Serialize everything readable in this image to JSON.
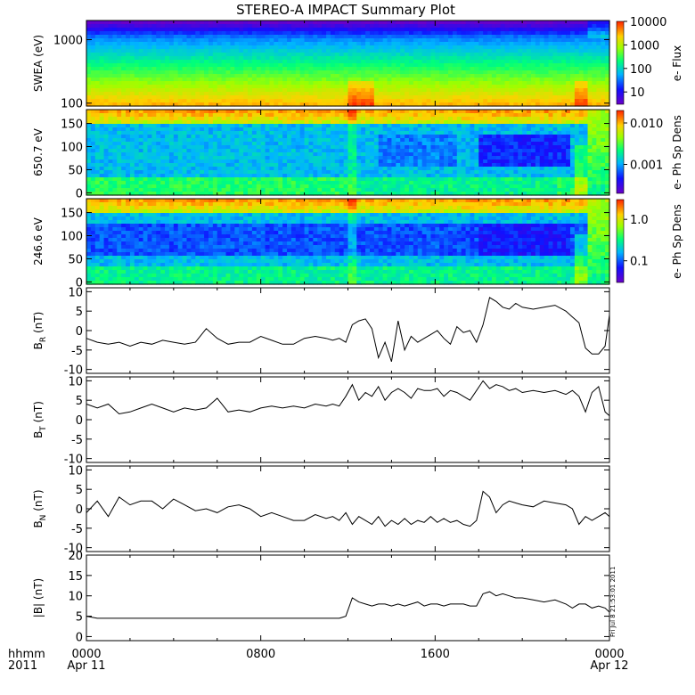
{
  "title": "STEREO-A IMPACT Summary Plot",
  "time_axis": {
    "labels": [
      "hhmm",
      "2011"
    ],
    "ticks": [
      {
        "hours": 0,
        "label": "0000",
        "date": "Apr 11"
      },
      {
        "hours": 8,
        "label": "0800",
        "date": ""
      },
      {
        "hours": 16,
        "label": "1600",
        "date": ""
      },
      {
        "hours": 24,
        "label": "0000",
        "date": "Apr 12"
      }
    ],
    "range_hours": [
      0,
      24
    ]
  },
  "stamp": "Fri Jul  8 21:53:01 2011",
  "chart_data": [
    {
      "type": "heatmap",
      "id": "swea",
      "ylabel": "SWEA (eV)",
      "yscale": "log",
      "ylim": [
        90,
        2000
      ],
      "yticks": [
        "100",
        "1000"
      ],
      "colorbar": {
        "label": "e- Flux",
        "scale": "log",
        "range": [
          3,
          10000
        ],
        "ticks": [
          "10",
          "100",
          "1000",
          "10000"
        ]
      },
      "events": [
        {
          "start_hours": 11.9,
          "end_hours": 13.2,
          "note": "enhanced flux"
        },
        {
          "start_hours": 22.4,
          "end_hours": 23.0,
          "note": "enhanced flux"
        }
      ]
    },
    {
      "type": "heatmap",
      "id": "pad650",
      "ylabel": "650.7 eV",
      "yticks": [
        "0",
        "50",
        "100",
        "150"
      ],
      "ylim": [
        -5,
        180
      ],
      "colorbar": {
        "label": "e- Ph Sp Dens",
        "scale": "log",
        "range": [
          0.0002,
          0.02
        ],
        "ticks": [
          "0.001",
          "0.010"
        ]
      }
    },
    {
      "type": "heatmap",
      "id": "pad246",
      "ylabel": "246.6 eV",
      "yticks": [
        "0",
        "50",
        "100",
        "150"
      ],
      "ylim": [
        -5,
        180
      ],
      "colorbar": {
        "label": "e- Ph Sp Dens",
        "scale": "log",
        "range": [
          0.03,
          3
        ],
        "ticks": [
          "0.1",
          "1.0"
        ]
      }
    },
    {
      "type": "line",
      "id": "br",
      "ylabel_main": "B",
      "ylabel_sub": "R",
      "ylabel_unit": " (nT)",
      "ylim": [
        -11,
        11
      ],
      "yticks": [
        "-10",
        "-5",
        "0",
        "5",
        "10"
      ],
      "x_hours": [
        0,
        0.5,
        1,
        1.5,
        2,
        2.5,
        3,
        3.5,
        4,
        4.5,
        5,
        5.5,
        6,
        6.5,
        7,
        7.5,
        8,
        8.5,
        9,
        9.5,
        10,
        10.5,
        11,
        11.3,
        11.6,
        11.9,
        12.2,
        12.5,
        12.8,
        13.1,
        13.4,
        13.7,
        14,
        14.3,
        14.6,
        14.9,
        15.2,
        15.5,
        15.8,
        16.1,
        16.4,
        16.7,
        17,
        17.3,
        17.6,
        17.9,
        18.2,
        18.5,
        18.8,
        19.1,
        19.4,
        19.7,
        20,
        20.5,
        21,
        21.5,
        22,
        22.3,
        22.6,
        22.9,
        23.2,
        23.5,
        23.8,
        24
      ],
      "values": [
        -2,
        -3,
        -3.5,
        -3,
        -4,
        -3,
        -3.5,
        -2.5,
        -3,
        -3.5,
        -3,
        0.5,
        -2,
        -3.5,
        -3,
        -3,
        -1.5,
        -2.5,
        -3.5,
        -3.5,
        -2,
        -1.5,
        -2,
        -2.5,
        -2,
        -3,
        1.5,
        2.5,
        3,
        0.5,
        -7,
        -3,
        -8,
        2.5,
        -5,
        -1.5,
        -3,
        -2,
        -1,
        0,
        -2,
        -3.5,
        1,
        -0.5,
        0,
        -3,
        1.5,
        8.5,
        7.5,
        6,
        5.5,
        7,
        6,
        5.5,
        6,
        6.5,
        5,
        3.5,
        2,
        -4.5,
        -6,
        -6,
        -4,
        4
      ]
    },
    {
      "type": "line",
      "id": "bt",
      "ylabel_main": "B",
      "ylabel_sub": "T",
      "ylabel_unit": " (nT)",
      "ylim": [
        -11,
        11
      ],
      "yticks": [
        "-10",
        "-5",
        "0",
        "5",
        "10"
      ],
      "x_hours": [
        0,
        0.5,
        1,
        1.5,
        2,
        2.5,
        3,
        3.5,
        4,
        4.5,
        5,
        5.5,
        6,
        6.5,
        7,
        7.5,
        8,
        8.5,
        9,
        9.5,
        10,
        10.5,
        11,
        11.3,
        11.6,
        11.9,
        12.2,
        12.5,
        12.8,
        13.1,
        13.4,
        13.7,
        14,
        14.3,
        14.6,
        14.9,
        15.2,
        15.5,
        15.8,
        16.1,
        16.4,
        16.7,
        17,
        17.3,
        17.6,
        17.9,
        18.2,
        18.5,
        18.8,
        19.1,
        19.4,
        19.7,
        20,
        20.5,
        21,
        21.5,
        22,
        22.3,
        22.6,
        22.9,
        23.2,
        23.5,
        23.8,
        24
      ],
      "values": [
        4,
        3,
        4,
        1.5,
        2,
        3,
        4,
        3,
        2,
        3,
        2.5,
        3,
        5.5,
        2,
        2.5,
        2,
        3,
        3.5,
        3,
        3.5,
        3,
        4,
        3.5,
        4,
        3.5,
        6,
        9,
        5,
        7,
        6,
        8.5,
        5,
        7,
        8,
        7,
        5.5,
        8,
        7.5,
        7.5,
        8,
        6,
        7.5,
        7,
        6,
        5,
        7.5,
        10,
        8,
        9,
        8.5,
        7.5,
        8,
        7,
        7.5,
        7,
        7.5,
        6.5,
        7.5,
        6,
        2,
        7,
        8.5,
        2,
        1
      ]
    },
    {
      "type": "line",
      "id": "bn",
      "ylabel_main": "B",
      "ylabel_sub": "N",
      "ylabel_unit": " (nT)",
      "ylim": [
        -11,
        11
      ],
      "yticks": [
        "-10",
        "-5",
        "0",
        "5",
        "10"
      ],
      "x_hours": [
        0,
        0.5,
        1,
        1.5,
        2,
        2.5,
        3,
        3.5,
        4,
        4.5,
        5,
        5.5,
        6,
        6.5,
        7,
        7.5,
        8,
        8.5,
        9,
        9.5,
        10,
        10.5,
        11,
        11.3,
        11.6,
        11.9,
        12.2,
        12.5,
        12.8,
        13.1,
        13.4,
        13.7,
        14,
        14.3,
        14.6,
        14.9,
        15.2,
        15.5,
        15.8,
        16.1,
        16.4,
        16.7,
        17,
        17.3,
        17.6,
        17.9,
        18.2,
        18.5,
        18.8,
        19.1,
        19.4,
        19.7,
        20,
        20.5,
        21,
        21.5,
        22,
        22.3,
        22.6,
        22.9,
        23.2,
        23.5,
        23.8,
        24
      ],
      "values": [
        -1,
        2,
        -2,
        3,
        1,
        2,
        2,
        0,
        2.5,
        1,
        -0.5,
        0,
        -1,
        0.5,
        1,
        0,
        -2,
        -1,
        -2,
        -3,
        -3,
        -1.5,
        -2.5,
        -2,
        -3,
        -1,
        -4,
        -2,
        -3,
        -4,
        -2,
        -4.5,
        -3,
        -4,
        -2.5,
        -4,
        -3,
        -3.5,
        -2,
        -3.5,
        -2.5,
        -3.5,
        -3,
        -4,
        -4.5,
        -3,
        4.5,
        3,
        -1,
        1,
        2,
        1.5,
        1,
        0.5,
        2,
        1.5,
        1,
        0,
        -4,
        -2,
        -3,
        -2,
        -1,
        -2
      ]
    },
    {
      "type": "line",
      "id": "bmag",
      "ylabel_main": "|B|",
      "ylabel_sub": "",
      "ylabel_unit": " (nT)",
      "ylim": [
        -1,
        20
      ],
      "yticks": [
        "0",
        "5",
        "10",
        "15",
        "20"
      ],
      "x_hours": [
        0,
        0.5,
        1,
        1.5,
        2,
        2.5,
        3,
        3.5,
        4,
        4.5,
        5,
        5.5,
        6,
        6.5,
        7,
        7.5,
        8,
        8.5,
        9,
        9.5,
        10,
        10.5,
        11,
        11.3,
        11.6,
        11.9,
        12.2,
        12.5,
        12.8,
        13.1,
        13.4,
        13.7,
        14,
        14.3,
        14.6,
        14.9,
        15.2,
        15.5,
        15.8,
        16.1,
        16.4,
        16.7,
        17,
        17.3,
        17.6,
        17.9,
        18.2,
        18.5,
        18.8,
        19.1,
        19.4,
        19.7,
        20,
        20.5,
        21,
        21.5,
        22,
        22.3,
        22.6,
        22.9,
        23.2,
        23.5,
        23.8,
        24
      ],
      "values": [
        5,
        4.5,
        4.5,
        4.5,
        4.5,
        4.5,
        4.5,
        4.5,
        4.5,
        4.5,
        4.5,
        4.5,
        4.5,
        4.5,
        4.5,
        4.5,
        4.5,
        4.5,
        4.5,
        4.5,
        4.5,
        4.5,
        4.5,
        4.5,
        4.5,
        5,
        9.5,
        8.5,
        8,
        7.5,
        8,
        8,
        7.5,
        8,
        7.5,
        8,
        8.5,
        7.5,
        8,
        8,
        7.5,
        8,
        8,
        8,
        7.5,
        7.5,
        10.5,
        11,
        10,
        10.5,
        10,
        9.5,
        9.5,
        9,
        8.5,
        9,
        8,
        7,
        8,
        8,
        7,
        7.5,
        7,
        6
      ]
    }
  ]
}
